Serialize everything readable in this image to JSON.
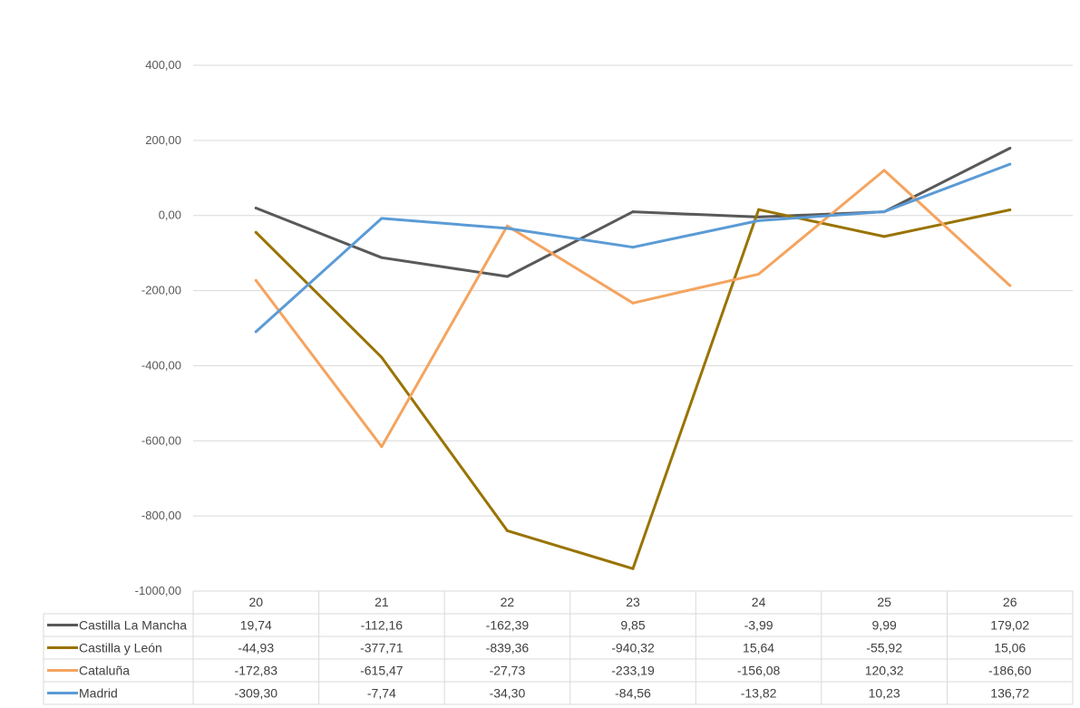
{
  "chart_data": {
    "type": "line",
    "title": "",
    "xlabel": "",
    "ylabel": "",
    "ylim": [
      -1000,
      400
    ],
    "y_ticks": [
      400,
      200,
      0,
      -200,
      -400,
      -600,
      -800,
      -1000
    ],
    "y_tick_labels": [
      "400,00",
      "200,00",
      "0,00",
      "-200,00",
      "-400,00",
      "-600,00",
      "-800,00",
      "-1000,00"
    ],
    "grid": true,
    "legend": "data-table-below",
    "categories": [
      "20",
      "21",
      "22",
      "23",
      "24",
      "25",
      "26"
    ],
    "series": [
      {
        "name": "Castilla La Mancha",
        "color": "#595959",
        "values": [
          19.74,
          -112.16,
          -162.39,
          9.85,
          -3.99,
          9.99,
          179.02
        ],
        "labels": [
          "19,74",
          "-112,16",
          "-162,39",
          "9,85",
          "-3,99",
          "9,99",
          "179,02"
        ]
      },
      {
        "name": "Castilla y León",
        "color": "#997300",
        "values": [
          -44.93,
          -377.71,
          -839.36,
          -940.32,
          15.64,
          -55.92,
          15.06
        ],
        "labels": [
          "-44,93",
          "-377,71",
          "-839,36",
          "-940,32",
          "15,64",
          "-55,92",
          "15,06"
        ]
      },
      {
        "name": "Cataluña",
        "color": "#F4A460",
        "values": [
          -172.83,
          -615.47,
          -27.73,
          -233.19,
          -156.08,
          120.32,
          -186.6
        ],
        "labels": [
          "-172,83",
          "-615,47",
          "-27,73",
          "-233,19",
          "-156,08",
          "120,32",
          "-186,60"
        ]
      },
      {
        "name": "Madrid",
        "color": "#5B9BD5",
        "values": [
          -309.3,
          -7.74,
          -34.3,
          -84.56,
          -13.82,
          10.23,
          136.72
        ],
        "labels": [
          "-309,30",
          "-7,74",
          "-34,30",
          "-84,56",
          "-13,82",
          "10,23",
          "136,72"
        ]
      }
    ]
  }
}
